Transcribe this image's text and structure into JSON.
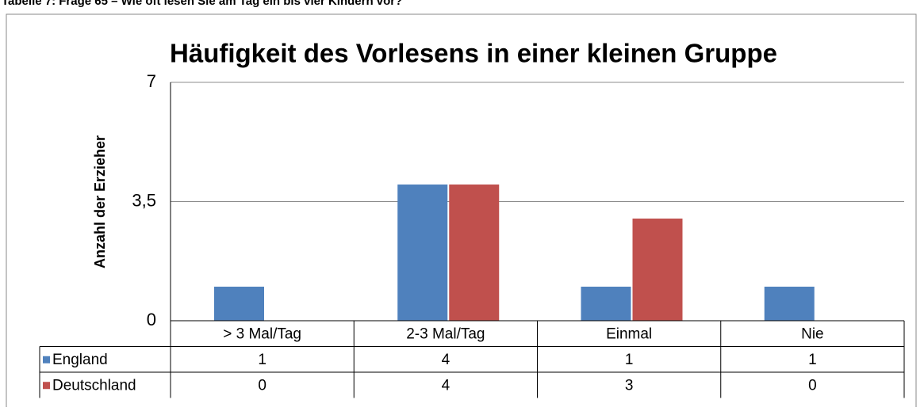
{
  "caption": "Tabelle 7:   Frage 65 – Wie oft lesen Sie am Tag ein bis vier Kindern vor?",
  "chart_data": {
    "type": "bar",
    "title": "Häufigkeit des Vorlesens in einer kleinen Gruppe",
    "y_label": "Anzahl der Erzieher",
    "categories": [
      "> 3 Mal/Tag",
      "2-3 Mal/Tag",
      "Einmal",
      "Nie"
    ],
    "series": [
      {
        "name": "England",
        "color": "#4f81bd",
        "values": [
          1,
          4,
          1,
          1
        ]
      },
      {
        "name": "Deutschland",
        "color": "#c0504d",
        "values": [
          0,
          4,
          3,
          0
        ]
      }
    ],
    "ylim": [
      0,
      7
    ],
    "yticks": [
      0,
      {
        "value": 3.5,
        "label": "3,5"
      },
      7
    ],
    "grid": true,
    "data_table": true
  }
}
